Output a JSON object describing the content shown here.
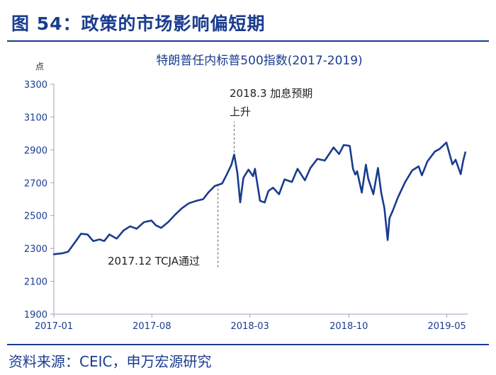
{
  "figure": {
    "title": "图 54：政策的市场影响偏短期",
    "source": "资料来源：CEIC，申万宏源研究"
  },
  "chart_data": {
    "type": "line",
    "title": "特朗普任内标普500指数(2017-2019)",
    "ylabel": "点",
    "ylim": [
      1900,
      3300
    ],
    "yticks": [
      1900,
      2100,
      2300,
      2500,
      2700,
      2900,
      3100,
      3300
    ],
    "x_tick_labels": [
      "2017-01",
      "2017-08",
      "2018-03",
      "2018-10",
      "2019-05"
    ],
    "xlim": [
      "2017-01-01",
      "2019-06-15"
    ],
    "grid": false,
    "legend": "none",
    "series": [
      {
        "color": "#1a3c8f",
        "points": [
          [
            "2017-01-01",
            2265
          ],
          [
            "2017-01-20",
            2271
          ],
          [
            "2017-02-01",
            2280
          ],
          [
            "2017-02-15",
            2335
          ],
          [
            "2017-03-01",
            2390
          ],
          [
            "2017-03-15",
            2385
          ],
          [
            "2017-03-27",
            2345
          ],
          [
            "2017-04-10",
            2355
          ],
          [
            "2017-04-20",
            2345
          ],
          [
            "2017-05-01",
            2385
          ],
          [
            "2017-05-17",
            2360
          ],
          [
            "2017-06-01",
            2410
          ],
          [
            "2017-06-15",
            2435
          ],
          [
            "2017-06-29",
            2420
          ],
          [
            "2017-07-15",
            2460
          ],
          [
            "2017-07-31",
            2470
          ],
          [
            "2017-08-10",
            2440
          ],
          [
            "2017-08-21",
            2425
          ],
          [
            "2017-09-05",
            2460
          ],
          [
            "2017-09-20",
            2505
          ],
          [
            "2017-10-05",
            2545
          ],
          [
            "2017-10-20",
            2575
          ],
          [
            "2017-11-05",
            2590
          ],
          [
            "2017-11-20",
            2600
          ],
          [
            "2017-12-01",
            2640
          ],
          [
            "2017-12-15",
            2680
          ],
          [
            "2017-12-31",
            2695
          ],
          [
            "2018-01-10",
            2750
          ],
          [
            "2018-01-20",
            2810
          ],
          [
            "2018-01-26",
            2872
          ],
          [
            "2018-02-02",
            2760
          ],
          [
            "2018-02-08",
            2580
          ],
          [
            "2018-02-15",
            2730
          ],
          [
            "2018-02-26",
            2780
          ],
          [
            "2018-03-08",
            2740
          ],
          [
            "2018-03-12",
            2785
          ],
          [
            "2018-03-23",
            2590
          ],
          [
            "2018-04-02",
            2580
          ],
          [
            "2018-04-10",
            2650
          ],
          [
            "2018-04-20",
            2670
          ],
          [
            "2018-05-03",
            2630
          ],
          [
            "2018-05-15",
            2720
          ],
          [
            "2018-05-31",
            2705
          ],
          [
            "2018-06-12",
            2785
          ],
          [
            "2018-06-28",
            2715
          ],
          [
            "2018-07-10",
            2790
          ],
          [
            "2018-07-25",
            2845
          ],
          [
            "2018-08-10",
            2835
          ],
          [
            "2018-08-29",
            2915
          ],
          [
            "2018-09-10",
            2875
          ],
          [
            "2018-09-20",
            2930
          ],
          [
            "2018-10-03",
            2925
          ],
          [
            "2018-10-10",
            2785
          ],
          [
            "2018-10-15",
            2750
          ],
          [
            "2018-10-19",
            2770
          ],
          [
            "2018-10-29",
            2640
          ],
          [
            "2018-11-07",
            2810
          ],
          [
            "2018-11-12",
            2725
          ],
          [
            "2018-11-23",
            2630
          ],
          [
            "2018-12-03",
            2790
          ],
          [
            "2018-12-10",
            2640
          ],
          [
            "2018-12-17",
            2545
          ],
          [
            "2018-12-24",
            2351
          ],
          [
            "2018-12-28",
            2485
          ],
          [
            "2019-01-04",
            2530
          ],
          [
            "2019-01-15",
            2610
          ],
          [
            "2019-01-31",
            2705
          ],
          [
            "2019-02-15",
            2775
          ],
          [
            "2019-03-01",
            2800
          ],
          [
            "2019-03-08",
            2745
          ],
          [
            "2019-03-20",
            2830
          ],
          [
            "2019-04-05",
            2890
          ],
          [
            "2019-04-15",
            2905
          ],
          [
            "2019-04-30",
            2945
          ],
          [
            "2019-05-13",
            2812
          ],
          [
            "2019-05-20",
            2840
          ],
          [
            "2019-05-31",
            2752
          ],
          [
            "2019-06-05",
            2830
          ],
          [
            "2019-06-10",
            2885
          ]
        ]
      }
    ],
    "annotations": [
      {
        "date": "2017-12-22",
        "text": "2017.12 TCJA通过"
      },
      {
        "date": "2018-01-26",
        "text_line1": "2018.3 加息预期",
        "text_line2": "上升"
      }
    ]
  }
}
